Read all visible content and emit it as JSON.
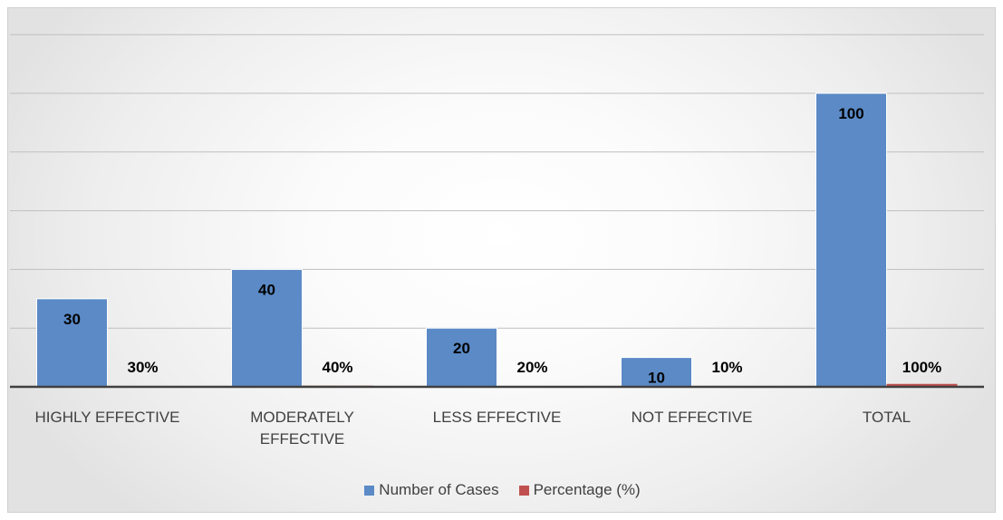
{
  "chart_data": {
    "type": "bar",
    "categories": [
      [
        "HIGHLY EFFECTIVE"
      ],
      [
        "MODERATELY",
        "EFFECTIVE"
      ],
      [
        "LESS EFFECTIVE"
      ],
      [
        "NOT EFFECTIVE"
      ],
      [
        "TOTAL"
      ]
    ],
    "series": [
      {
        "name": "Number of Cases",
        "values": [
          30,
          40,
          20,
          10,
          100
        ],
        "labels": [
          "30",
          "40",
          "20",
          "10",
          "100"
        ],
        "color": "#5b8ac6"
      },
      {
        "name": "Percentage (%)",
        "values": [
          0.3,
          0.4,
          0.2,
          0.1,
          1.0
        ],
        "labels": [
          "30%",
          "40%",
          "20%",
          "10%",
          "100%"
        ],
        "color": "#c0504d"
      }
    ],
    "ylim": [
      0,
      120
    ],
    "grid": true,
    "legend": "bottom"
  }
}
